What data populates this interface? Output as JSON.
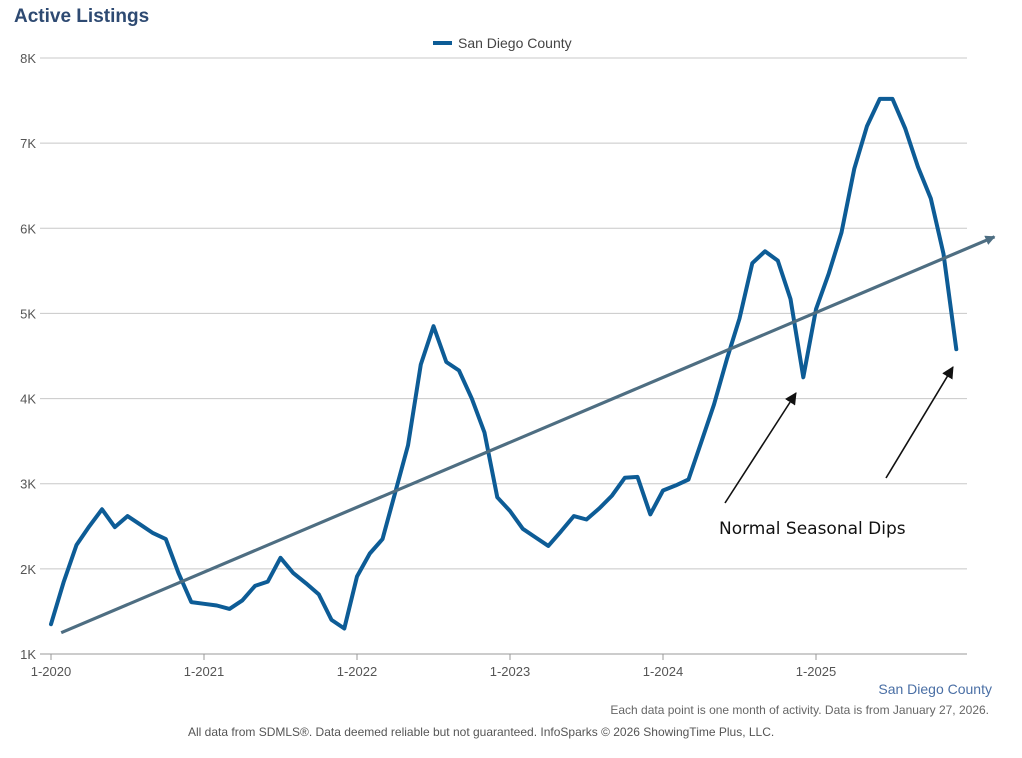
{
  "chart_data": {
    "type": "line",
    "title": "Active Listings",
    "legend": [
      "San Diego County"
    ],
    "x_tick_labels": [
      "1-2020",
      "1-2021",
      "1-2022",
      "1-2023",
      "1-2024",
      "1-2025"
    ],
    "y_tick_labels": [
      "1K",
      "2K",
      "3K",
      "4K",
      "5K",
      "6K",
      "7K",
      "8K"
    ],
    "ylim": [
      1000,
      8000
    ],
    "series": [
      {
        "name": "San Diego County",
        "color": "#0d5c96",
        "start": "1-2020",
        "values": [
          1350,
          1850,
          2280,
          2500,
          2700,
          2490,
          2620,
          2520,
          2420,
          2350,
          1950,
          1610,
          1590,
          1570,
          1530,
          1630,
          1800,
          1850,
          2130,
          1950,
          1830,
          1700,
          1400,
          1300,
          1910,
          2180,
          2350,
          2900,
          3450,
          4400,
          4850,
          4430,
          4330,
          4000,
          3600,
          2840,
          2680,
          2470,
          2370,
          2270,
          2440,
          2620,
          2580,
          2710,
          2860,
          3070,
          3080,
          2640,
          2920,
          2980,
          3050,
          3490,
          3930,
          4460,
          4940,
          5590,
          5730,
          5620,
          5170,
          4250,
          5050,
          5470,
          5950,
          6700,
          7200,
          7520,
          7520,
          7170,
          6720,
          6350,
          5700,
          4580
        ]
      }
    ],
    "trend_line": {
      "color": "#4e6e82",
      "start_value": 1250,
      "end_value": 5900,
      "months": 74
    },
    "annotation": "Normal Seasonal Dips",
    "series_label": "San Diego County",
    "footnote": "Each data point is one month of activity. Data is from January 27, 2026.",
    "source": "All data from SDMLS®. Data deemed reliable but not guaranteed. InfoSparks © 2026 ShowingTime Plus, LLC."
  }
}
